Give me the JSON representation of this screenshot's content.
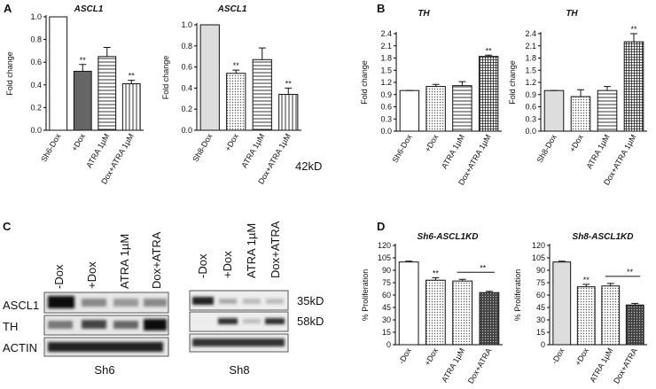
{
  "panels": [
    "A",
    "B",
    "C",
    "D"
  ],
  "chart_data": [
    {
      "type": "bar",
      "title": "ASCL1",
      "ylabel": "Fold change",
      "categories": [
        "Sh6-Dox",
        "+Dox",
        "ATRA 1µM",
        "Dox+ATRA 1µM"
      ],
      "values": [
        1.0,
        0.52,
        0.65,
        0.41
      ],
      "errors": [
        0,
        0.06,
        0.08,
        0.03
      ],
      "fills": [
        "white",
        "#666666",
        "hlines",
        "vlines"
      ],
      "ylim": [
        0,
        1.0
      ],
      "yticks": [
        {
          "value": 0,
          "label": "0.0"
        },
        0.2,
        0.4,
        0.6,
        0.8,
        {
          "value": 1,
          "label": "1.0"
        }
      ],
      "annotations": [
        {
          "category": "+Dox",
          "text": "**"
        },
        {
          "category": "Dox+ATRA 1µM",
          "text": "**"
        }
      ]
    },
    {
      "type": "bar",
      "title": "ASCL1",
      "ylabel": "Fold change",
      "categories": [
        "Sh8-Dox",
        "+Dox",
        "ATRA 1µM",
        "Dox+ATRA 1µM"
      ],
      "values": [
        1.0,
        0.54,
        0.67,
        0.34
      ],
      "errors": [
        0,
        0.03,
        0.11,
        0.06
      ],
      "fills": [
        "#dddddd",
        "dots",
        "hlines",
        "vlines"
      ],
      "ylim": [
        0,
        1.0
      ],
      "yticks": [
        {
          "value": 0,
          "label": "0.0"
        },
        0.2,
        0.4,
        0.6,
        0.8,
        {
          "value": 1,
          "label": "1.0"
        }
      ],
      "annotations": [
        {
          "category": "+Dox",
          "text": "**"
        },
        {
          "category": "Dox+ATRA 1µM",
          "text": "**"
        }
      ]
    },
    {
      "type": "bar",
      "title": "TH",
      "ylabel": "Fold change",
      "categories": [
        "Sh6-Dox",
        "+Dox",
        "ATRA 1µM",
        "Dox+ATRA 1µM"
      ],
      "values": [
        1.0,
        1.1,
        1.12,
        1.84
      ],
      "errors": [
        0,
        0.05,
        0.1,
        0.03
      ],
      "fills": [
        "white",
        "dots",
        "hlines",
        "grid"
      ],
      "ylim": [
        0,
        2.4
      ],
      "yticks": [
        {
          "value": 0,
          "label": "0.0"
        },
        0.3,
        0.6,
        0.9,
        1.2,
        1.5,
        1.8,
        2.1,
        2.4
      ],
      "annotations": [
        {
          "category": "Dox+ATRA 1µM",
          "text": "**"
        }
      ]
    },
    {
      "type": "bar",
      "title": "TH",
      "ylabel": "Fold change",
      "categories": [
        "Sh8-Dox",
        "+Dox",
        "ATRA 1µM",
        "Dox+ATRA 1µM"
      ],
      "values": [
        1.0,
        0.85,
        1.0,
        2.2
      ],
      "errors": [
        0,
        0.17,
        0.1,
        0.2
      ],
      "fills": [
        "#dddddd",
        "dots",
        "hlines",
        "grid"
      ],
      "ylim": [
        0,
        2.4
      ],
      "yticks": [
        {
          "value": 0,
          "label": "0.0"
        },
        0.3,
        0.6,
        0.9,
        1.2,
        1.5,
        1.8,
        2.1,
        2.4
      ],
      "annotations": [
        {
          "category": "Dox+ATRA 1µM",
          "text": "**"
        }
      ]
    },
    {
      "type": "bar",
      "title": "Sh6-ASCL1KD",
      "ylabel": "% Proliferation",
      "categories": [
        "-Dox",
        "+Dox",
        "ATRA 1µM",
        "Dox+ATRA"
      ],
      "values": [
        100,
        78,
        77,
        63
      ],
      "errors": [
        1,
        3,
        2,
        1.5
      ],
      "fills": [
        "white",
        "dots",
        "dots",
        "dense"
      ],
      "ylim": [
        0,
        120
      ],
      "yticks": [
        0,
        15,
        30,
        45,
        60,
        75,
        90,
        105,
        120
      ],
      "annotations": [
        {
          "category": "+Dox",
          "text": "**"
        }
      ],
      "bracket": {
        "categories": [
          "ATRA 1µM",
          "Dox+ATRA"
        ],
        "text": "**"
      }
    },
    {
      "type": "bar",
      "title": "Sh8-ASCL1KD",
      "ylabel": "% Proliferation",
      "categories": [
        "-Dox",
        "+Dox",
        "ATRA 1µM",
        "Dox+ATRA"
      ],
      "values": [
        100,
        70,
        71,
        48
      ],
      "errors": [
        1,
        3,
        3,
        2
      ],
      "fills": [
        "#dddddd",
        "dots",
        "dots",
        "dense"
      ],
      "ylim": [
        0,
        120
      ],
      "yticks": [
        0,
        15,
        30,
        45,
        60,
        75,
        90,
        105,
        120
      ],
      "annotations": [
        {
          "category": "+Dox",
          "text": "**"
        }
      ],
      "bracket": {
        "categories": [
          "ATRA 1µM",
          "Dox+ATRA"
        ],
        "text": "**"
      }
    }
  ],
  "blot": {
    "rows": [
      "ASCL1",
      "TH",
      "ACTIN"
    ],
    "groups": [
      {
        "name": "Sh6",
        "lanes": [
          "-Dox",
          "+Dox",
          "ATRA 1µM",
          "Dox+ATRA"
        ]
      },
      {
        "name": "Sh8",
        "lanes": [
          "-Dox",
          "+Dox",
          "ATRA 1µM",
          "Dox+ATRA"
        ]
      }
    ],
    "sizes": [
      "42kD",
      "35kD",
      "58kD"
    ]
  }
}
